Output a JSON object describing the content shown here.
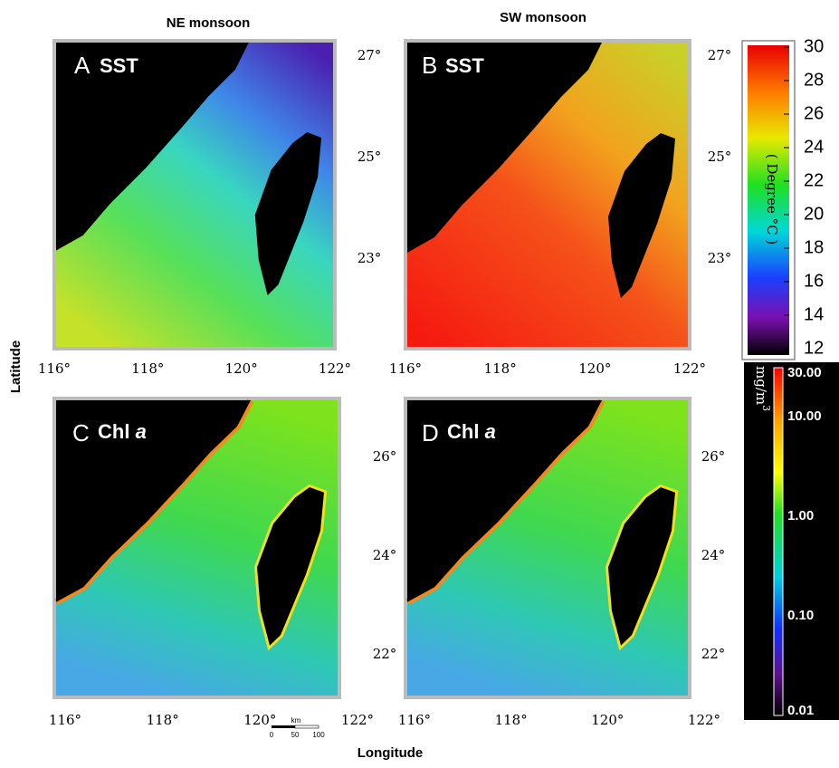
{
  "column_titles": [
    "NE monsoon",
    "SW monsoon"
  ],
  "axis_labels": {
    "y": "Latitude",
    "x": "Longitude"
  },
  "panels": [
    {
      "letter": "A",
      "variable": "SST"
    },
    {
      "letter": "B",
      "variable": "SST"
    },
    {
      "letter": "C",
      "variable": "Chl",
      "variable_italic": "a"
    },
    {
      "letter": "D",
      "variable": "Chl",
      "variable_italic": "a"
    }
  ],
  "top_row": {
    "longitude_ticks": [
      "116°",
      "118°",
      "120°",
      "122°"
    ],
    "latitude_ticks": [
      "27°",
      "25°",
      "23°"
    ]
  },
  "bottom_row": {
    "longitude_ticks": [
      "116°",
      "118°",
      "120°",
      "122°"
    ],
    "latitude_ticks": [
      "26°",
      "24°",
      "22°"
    ]
  },
  "sst_colorbar": {
    "label": "( Degree °C )",
    "ticks": [
      "30",
      "28",
      "26",
      "24",
      "22",
      "20",
      "18",
      "16",
      "14",
      "12"
    ]
  },
  "chl_colorbar": {
    "unit": "mg/m",
    "unit_superscript": "3",
    "ticks": [
      "30.00",
      "10.00",
      "1.00",
      "0.10",
      "0.01"
    ]
  },
  "scale_bar": {
    "unit": "km",
    "ticks": [
      "0",
      "50",
      "100"
    ]
  }
}
